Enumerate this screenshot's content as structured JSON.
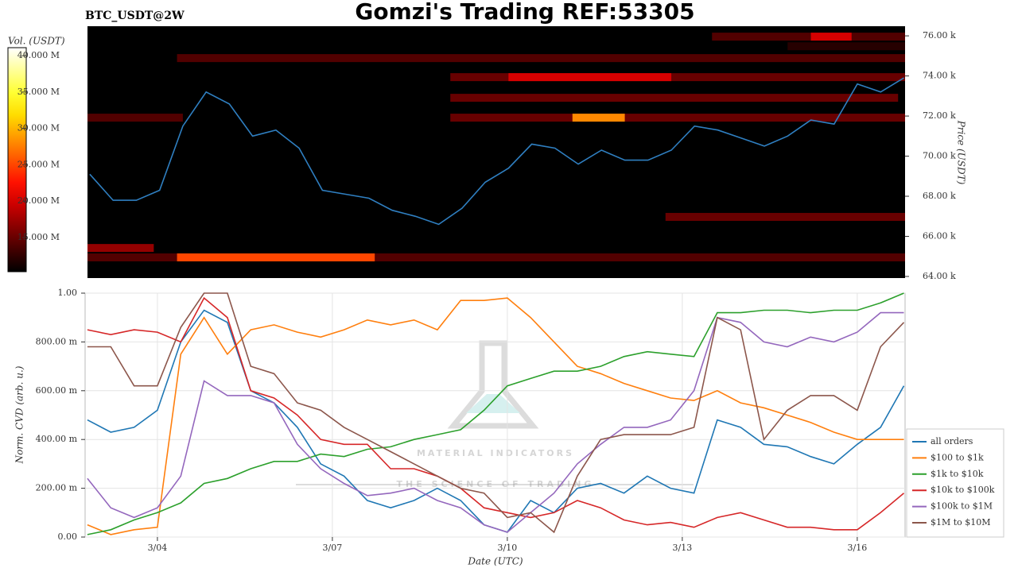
{
  "chart_data": [
    {
      "type": "heatmap",
      "title": "Gomzi's Trading REF:53305",
      "subtitle": "BTC_USDT@2W",
      "y_label": "Price (USDT)",
      "colorbar_label": "Vol. (USDT)",
      "xlim": [
        2.76,
        16.82
      ],
      "ylim": [
        63920,
        76480
      ],
      "yticks": [
        {
          "value": 64000,
          "label": "64.00 k"
        },
        {
          "value": 66000,
          "label": "66.00 k"
        },
        {
          "value": 68000,
          "label": "68.00 k"
        },
        {
          "value": 70000,
          "label": "70.00 k"
        },
        {
          "value": 72000,
          "label": "72.00 k"
        },
        {
          "value": 74000,
          "label": "74.00 k"
        },
        {
          "value": 76000,
          "label": "76.00 k"
        }
      ],
      "vlim": [
        10300000,
        41100000
      ],
      "vticks": [
        {
          "value": 15000000,
          "label": "15.000 M"
        },
        {
          "value": 20000000,
          "label": "20.000 M"
        },
        {
          "value": 25000000,
          "label": "25.000 M"
        },
        {
          "value": 30000000,
          "label": "30.000 M"
        },
        {
          "value": 35000000,
          "label": "35.000 M"
        },
        {
          "value": 40000000,
          "label": "40.000 M"
        }
      ],
      "bands": [
        {
          "price": 74890,
          "start": 4.3,
          "end": 16.82,
          "volume": 14000000
        },
        {
          "price": 75960,
          "start": 13.5,
          "end": 16.82,
          "volume": 14000000
        },
        {
          "price": 75480,
          "start": 14.8,
          "end": 16.82,
          "volume": 12000000
        },
        {
          "price": 73940,
          "start": 9.0,
          "end": 16.82,
          "volume": 15000000
        },
        {
          "price": 72910,
          "start": 9.0,
          "end": 16.7,
          "volume": 15000000
        },
        {
          "price": 71920,
          "start": 2.76,
          "end": 4.4,
          "volume": 14000000
        },
        {
          "price": 71920,
          "start": 9.0,
          "end": 16.82,
          "volume": 15000000
        },
        {
          "price": 66970,
          "start": 12.7,
          "end": 16.82,
          "volume": 15000000
        },
        {
          "price": 65420,
          "start": 2.76,
          "end": 3.9,
          "volume": 17000000
        },
        {
          "price": 64950,
          "start": 2.76,
          "end": 16.82,
          "volume": 14000000
        },
        {
          "price": 75960,
          "start": 15.2,
          "end": 15.9,
          "volume": 20000000
        },
        {
          "price": 73940,
          "start": 10.0,
          "end": 12.8,
          "volume": 20000000
        },
        {
          "price": 64950,
          "start": 4.3,
          "end": 7.7,
          "volume": 25000000
        },
        {
          "price": 71920,
          "start": 11.1,
          "end": 12.0,
          "volume": 28000000
        }
      ],
      "price_line": {
        "color": "#2f7fc1",
        "x": [
          2.8,
          3.2,
          3.6,
          4.0,
          4.4,
          4.8,
          5.2,
          5.6,
          6.0,
          6.4,
          6.8,
          7.2,
          7.6,
          8.0,
          8.4,
          8.8,
          9.2,
          9.6,
          10.0,
          10.4,
          10.8,
          11.2,
          11.6,
          12.0,
          12.4,
          12.8,
          13.2,
          13.6,
          14.0,
          14.4,
          14.8,
          15.2,
          15.6,
          16.0,
          16.4,
          16.8
        ],
        "values": [
          69100,
          67800,
          67800,
          68300,
          71500,
          73200,
          72600,
          71000,
          71300,
          70400,
          68300,
          68100,
          67900,
          67300,
          67000,
          66600,
          67400,
          68700,
          69400,
          70600,
          70400,
          69600,
          70300,
          69800,
          69800,
          70300,
          71500,
          71300,
          70900,
          70500,
          71000,
          71800,
          71600,
          73600,
          73200,
          73900
        ]
      }
    },
    {
      "type": "line",
      "x_label": "Date (UTC)",
      "y_label": "Norm. CVD (arb. u.)",
      "xlim": [
        2.76,
        16.82
      ],
      "xticks": [
        {
          "value": 4,
          "label": "3/04"
        },
        {
          "value": 7,
          "label": "3/07"
        },
        {
          "value": 10,
          "label": "3/10"
        },
        {
          "value": 13,
          "label": "3/13"
        },
        {
          "value": 16,
          "label": "3/16"
        }
      ],
      "ylim": [
        0,
        1
      ],
      "yticks": [
        {
          "value": 0,
          "label": "0.00"
        },
        {
          "value": 0.2,
          "label": "200.00 m"
        },
        {
          "value": 0.4,
          "label": "400.00 m"
        },
        {
          "value": 0.6,
          "label": "600.00 m"
        },
        {
          "value": 0.8,
          "label": "800.00 m"
        },
        {
          "value": 1,
          "label": "1.00"
        }
      ],
      "grid": true,
      "legend": "right",
      "watermark": {
        "title": "MATERIAL INDICATORS",
        "subtitle": "THE SCIENCE OF TRADING"
      },
      "x": [
        2.8,
        3.2,
        3.6,
        4.0,
        4.4,
        4.8,
        5.2,
        5.6,
        6.0,
        6.4,
        6.8,
        7.2,
        7.6,
        8.0,
        8.4,
        8.8,
        9.2,
        9.6,
        10.0,
        10.4,
        10.8,
        11.2,
        11.6,
        12.0,
        12.4,
        12.8,
        13.2,
        13.6,
        14.0,
        14.4,
        14.8,
        15.2,
        15.6,
        16.0,
        16.4,
        16.8
      ],
      "series": [
        {
          "name": "all orders",
          "color": "#1f77b4",
          "values": [
            0.48,
            0.43,
            0.45,
            0.52,
            0.8,
            0.93,
            0.88,
            0.6,
            0.55,
            0.45,
            0.3,
            0.25,
            0.15,
            0.12,
            0.15,
            0.2,
            0.15,
            0.05,
            0.02,
            0.15,
            0.1,
            0.2,
            0.22,
            0.18,
            0.25,
            0.2,
            0.18,
            0.48,
            0.45,
            0.38,
            0.37,
            0.33,
            0.3,
            0.38,
            0.45,
            0.62
          ]
        },
        {
          "name": "$100 to $1k",
          "color": "#ff7f0e",
          "values": [
            0.05,
            0.01,
            0.03,
            0.04,
            0.75,
            0.9,
            0.75,
            0.85,
            0.87,
            0.84,
            0.82,
            0.85,
            0.89,
            0.87,
            0.89,
            0.85,
            0.97,
            0.97,
            0.98,
            0.9,
            0.8,
            0.7,
            0.67,
            0.63,
            0.6,
            0.57,
            0.56,
            0.6,
            0.55,
            0.53,
            0.5,
            0.47,
            0.43,
            0.4,
            0.4,
            0.4
          ]
        },
        {
          "name": "$1k to $10k",
          "color": "#2ca02c",
          "values": [
            0.01,
            0.03,
            0.07,
            0.1,
            0.14,
            0.22,
            0.24,
            0.28,
            0.31,
            0.31,
            0.34,
            0.33,
            0.36,
            0.37,
            0.4,
            0.42,
            0.44,
            0.52,
            0.62,
            0.65,
            0.68,
            0.68,
            0.7,
            0.74,
            0.76,
            0.75,
            0.74,
            0.92,
            0.92,
            0.93,
            0.93,
            0.92,
            0.93,
            0.93,
            0.96,
            1.0
          ]
        },
        {
          "name": "$10k to $100k",
          "color": "#d62728",
          "values": [
            0.85,
            0.83,
            0.85,
            0.84,
            0.8,
            0.98,
            0.9,
            0.6,
            0.57,
            0.5,
            0.4,
            0.38,
            0.38,
            0.28,
            0.28,
            0.25,
            0.2,
            0.12,
            0.1,
            0.08,
            0.1,
            0.15,
            0.12,
            0.07,
            0.05,
            0.06,
            0.04,
            0.08,
            0.1,
            0.07,
            0.04,
            0.04,
            0.03,
            0.03,
            0.1,
            0.18
          ]
        },
        {
          "name": "$100k to $1M",
          "color": "#9467bd",
          "values": [
            0.24,
            0.12,
            0.08,
            0.12,
            0.25,
            0.64,
            0.58,
            0.58,
            0.55,
            0.38,
            0.28,
            0.22,
            0.17,
            0.18,
            0.2,
            0.15,
            0.12,
            0.05,
            0.02,
            0.1,
            0.18,
            0.3,
            0.38,
            0.45,
            0.45,
            0.48,
            0.6,
            0.9,
            0.88,
            0.8,
            0.78,
            0.82,
            0.8,
            0.84,
            0.92,
            0.92
          ]
        },
        {
          "name": "$1M to $10M",
          "color": "#8c564b",
          "values": [
            0.78,
            0.78,
            0.62,
            0.62,
            0.86,
            1.0,
            1.0,
            0.7,
            0.67,
            0.55,
            0.52,
            0.45,
            0.4,
            0.35,
            0.3,
            0.25,
            0.2,
            0.18,
            0.08,
            0.1,
            0.02,
            0.25,
            0.4,
            0.42,
            0.42,
            0.42,
            0.45,
            0.9,
            0.85,
            0.4,
            0.52,
            0.58,
            0.58,
            0.52,
            0.78,
            0.88
          ]
        }
      ]
    }
  ]
}
